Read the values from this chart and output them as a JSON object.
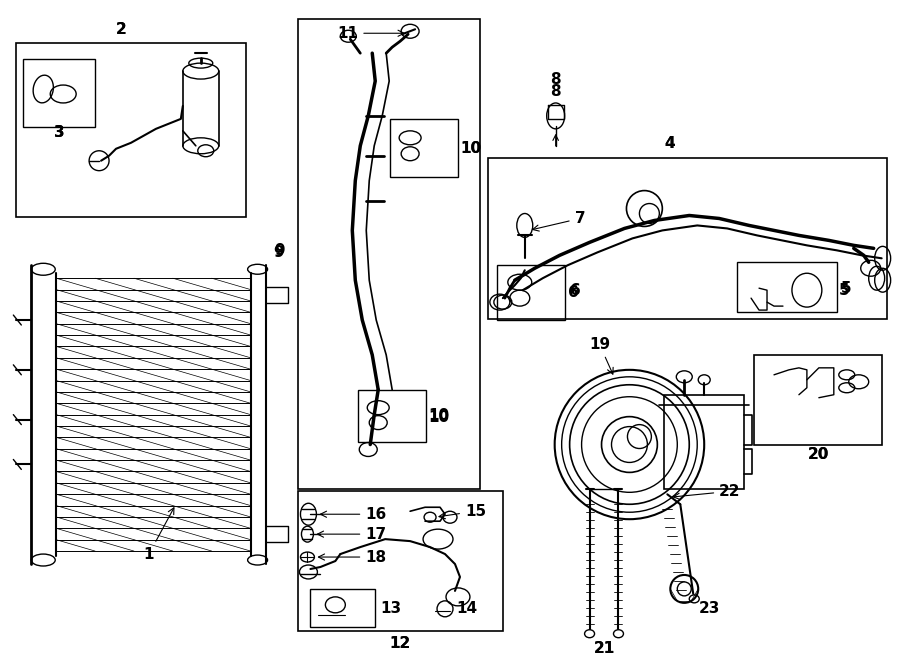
{
  "bg_color": "#ffffff",
  "line_color": "#000000",
  "fig_width": 9.0,
  "fig_height": 6.61,
  "dpi": 100,
  "label_fontsize": 11
}
